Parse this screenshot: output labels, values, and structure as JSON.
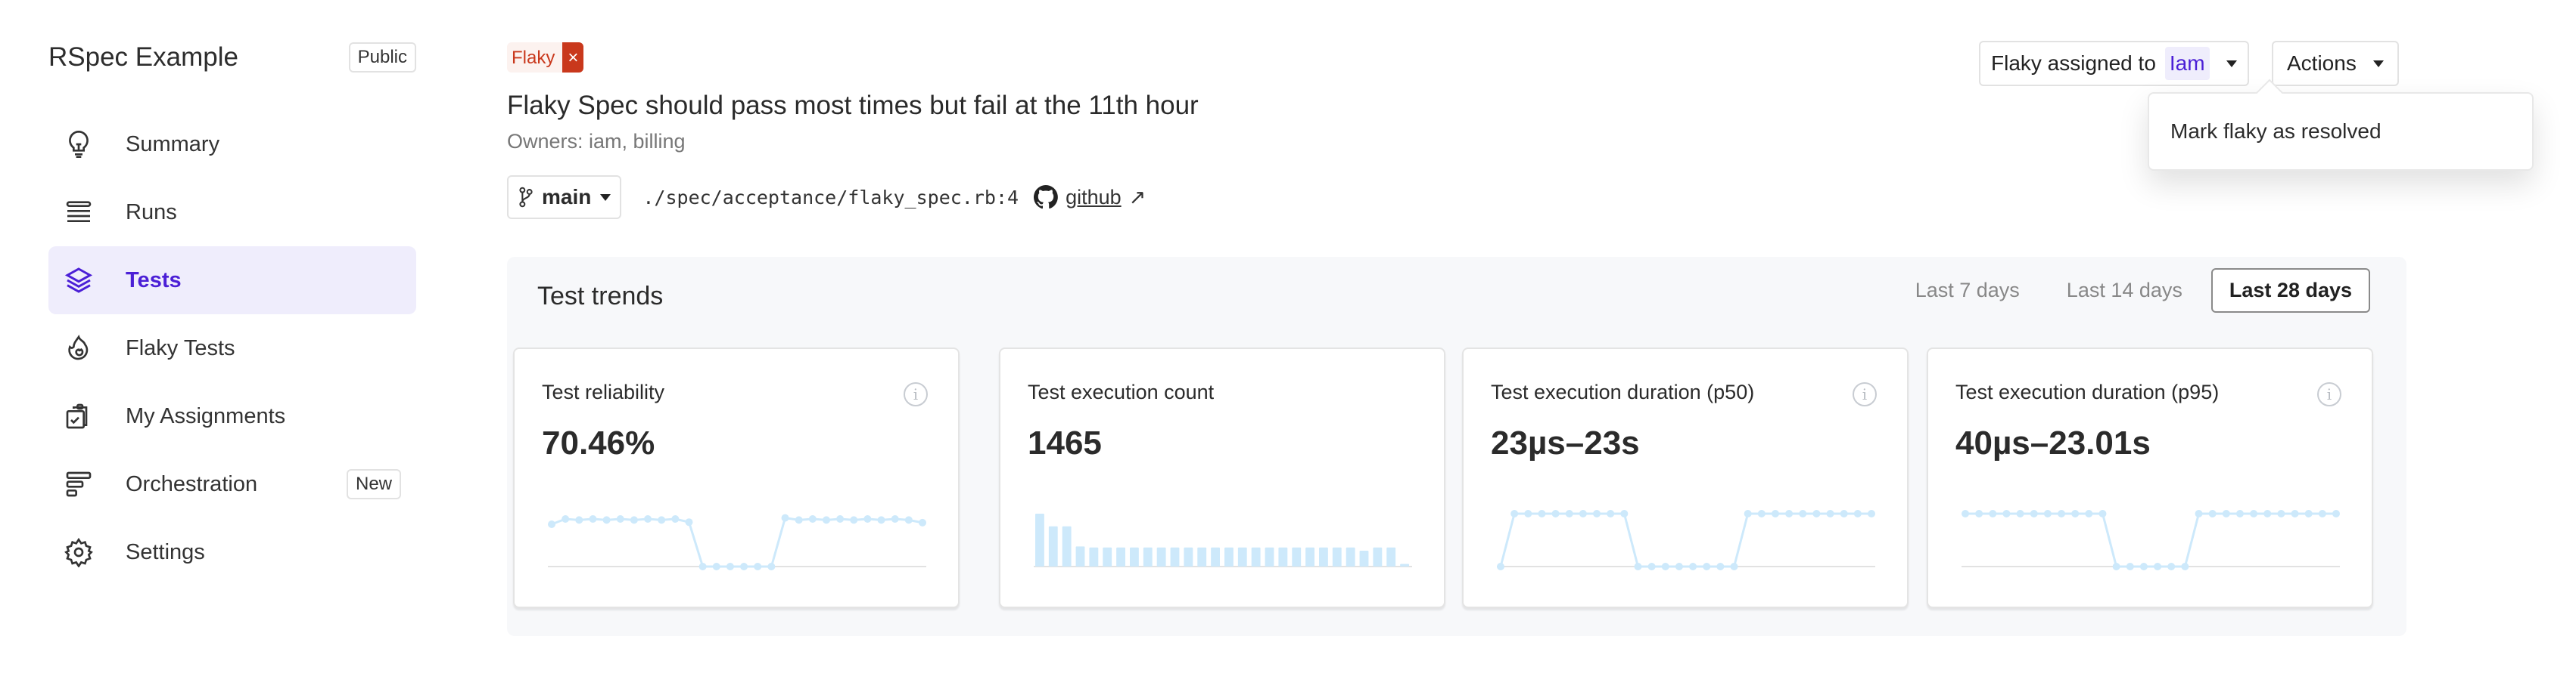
{
  "sidebar": {
    "title": "RSpec Example",
    "visibility_badge": "Public",
    "items": [
      {
        "label": "Summary",
        "icon": "lightbulb-icon"
      },
      {
        "label": "Runs",
        "icon": "list-icon"
      },
      {
        "label": "Tests",
        "icon": "layers-icon",
        "active": true
      },
      {
        "label": "Flaky Tests",
        "icon": "flame-icon"
      },
      {
        "label": "My Assignments",
        "icon": "clipboard-check-icon"
      },
      {
        "label": "Orchestration",
        "icon": "bars-icon",
        "badge": "New"
      },
      {
        "label": "Settings",
        "icon": "gear-icon"
      }
    ]
  },
  "header": {
    "flaky_badge": "Flaky",
    "flaky_badge_close": "×",
    "title": "Flaky Spec should pass most times but fail at the 11th hour",
    "owners": "Owners: iam, billing",
    "branch": "main",
    "path": "./spec/acceptance/flaky_spec.rb:4",
    "github_link": "github",
    "github_arrow": "↗",
    "assigned_label": "Flaky assigned to",
    "assignee": "Iam",
    "actions_label": "Actions",
    "actions_menu": [
      "Mark flaky as resolved"
    ]
  },
  "colors": {
    "accent": "#4b1fd6",
    "flaky": "#c9381c",
    "spark": "#cde9fb",
    "baseline": "#e2e2e2"
  },
  "trends": {
    "title": "Test trends",
    "ranges": [
      "Last 7 days",
      "Last 14 days",
      "Last 28 days"
    ],
    "selected_range": "Last 28 days",
    "info_glyph": "i"
  },
  "chart_data": [
    {
      "type": "line",
      "title": "Test reliability",
      "value": "70.46%",
      "info": true,
      "values": [
        0.8,
        0.9,
        0.88,
        0.9,
        0.88,
        0.9,
        0.88,
        0.9,
        0.88,
        0.9,
        0.84,
        0,
        0,
        0,
        0,
        0,
        0,
        0.92,
        0.88,
        0.9,
        0.88,
        0.9,
        0.88,
        0.9,
        0.88,
        0.9,
        0.88,
        0.83
      ]
    },
    {
      "type": "bar",
      "title": "Test execution count",
      "value": "1465",
      "info": false,
      "values": [
        1.0,
        0.76,
        0.76,
        0.38,
        0.36,
        0.36,
        0.36,
        0.36,
        0.36,
        0.36,
        0.36,
        0.36,
        0.36,
        0.36,
        0.36,
        0.36,
        0.36,
        0.36,
        0.36,
        0.36,
        0.36,
        0.36,
        0.36,
        0.36,
        0.3,
        0.36,
        0.36,
        0.05
      ]
    },
    {
      "type": "line",
      "title": "Test execution duration (p50)",
      "value": "23µs–23s",
      "info": true,
      "values": [
        0,
        1,
        1,
        1,
        1,
        1,
        1,
        1,
        1,
        1,
        0,
        0,
        0,
        0,
        0,
        0,
        0,
        0,
        1,
        1,
        1,
        1,
        1,
        1,
        1,
        1,
        1,
        1
      ]
    },
    {
      "type": "line",
      "title": "Test execution duration (p95)",
      "value": "40µs–23.01s",
      "info": true,
      "values": [
        1,
        1,
        1,
        1,
        1,
        1,
        1,
        1,
        1,
        1,
        1,
        0,
        0,
        0,
        0,
        0,
        0,
        1,
        1,
        1,
        1,
        1,
        1,
        1,
        1,
        1,
        1,
        1
      ]
    }
  ]
}
